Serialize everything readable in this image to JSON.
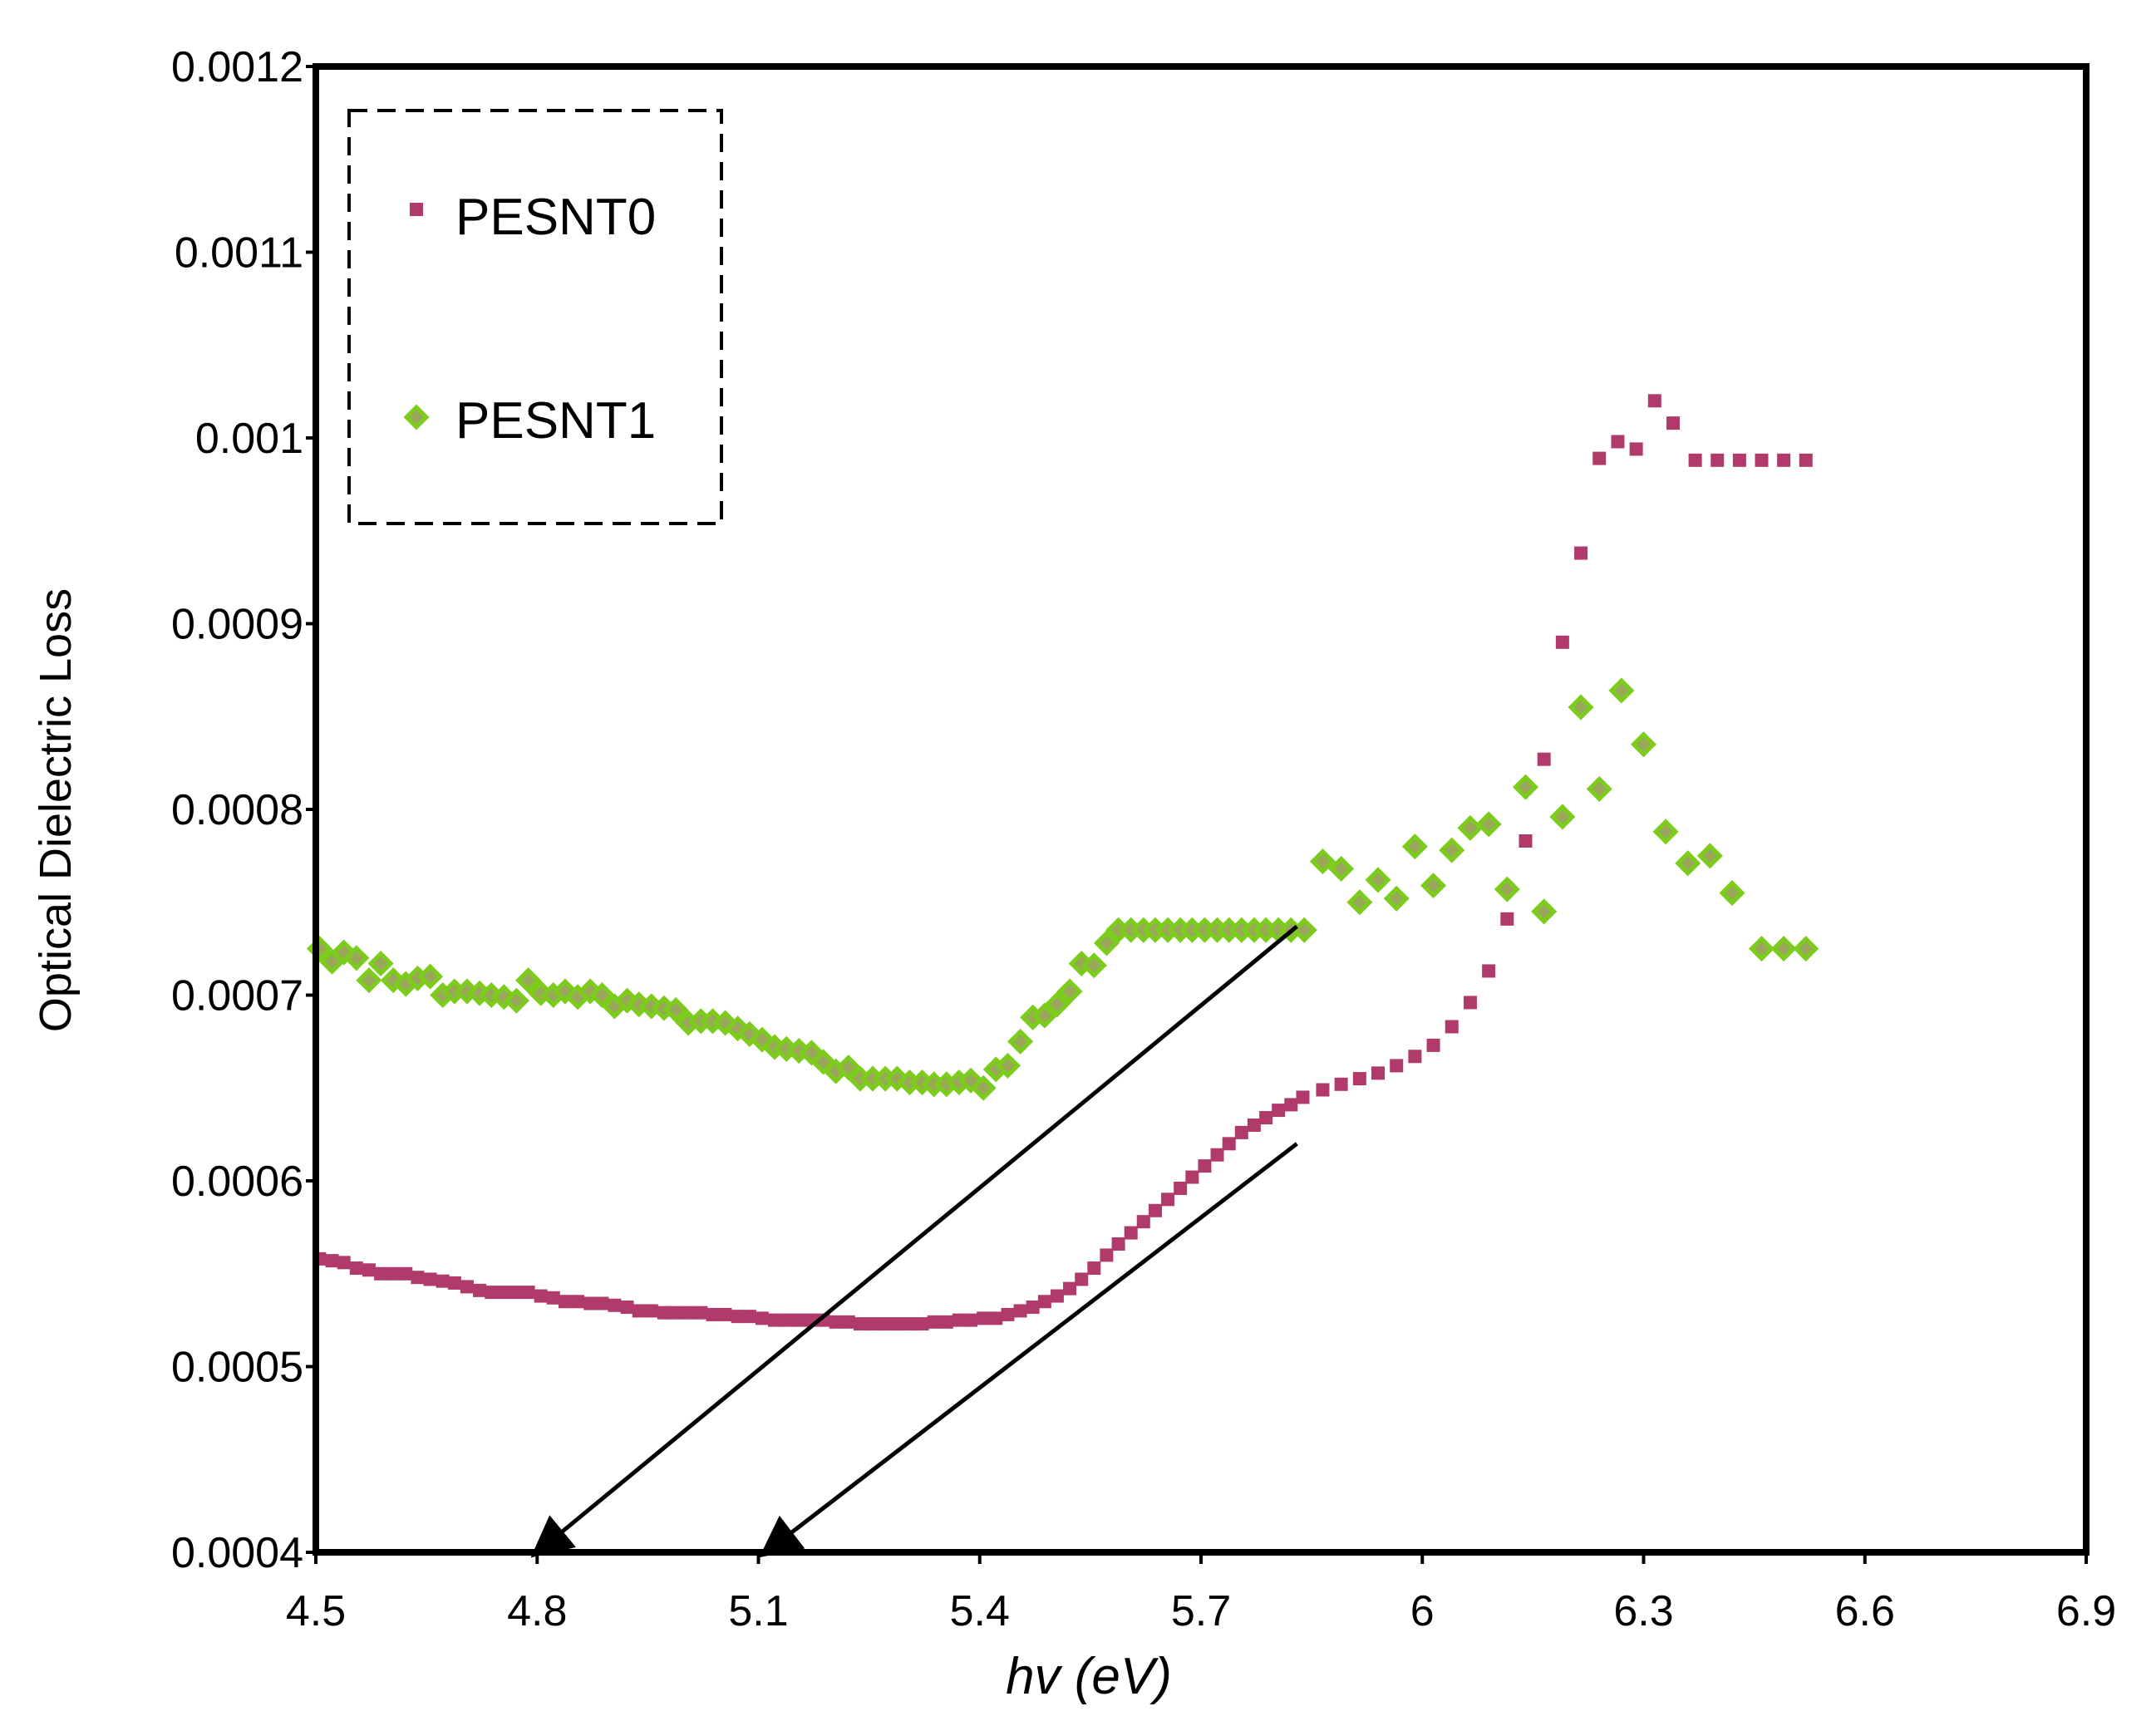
{
  "chart_data": {
    "type": "scatter",
    "title": "",
    "xlabel": "hv (eV)",
    "ylabel": "Optical Dielectric Loss",
    "xlim": [
      4.5,
      6.9
    ],
    "ylim": [
      0.0004,
      0.0012
    ],
    "x_ticks": [
      "4.5",
      "4.8",
      "5.1",
      "5.4",
      "5.7",
      "6",
      "6.3",
      "6.6",
      "6.9"
    ],
    "y_ticks": [
      "0.0004",
      "0.0005",
      "0.0006",
      "0.0007",
      "0.0008",
      "0.0009",
      "0.001",
      "0.0011",
      "0.0012"
    ],
    "grid": false,
    "legend_position": "top-left",
    "colors": {
      "PESNT0": "#b03a6a",
      "PESNT1_fill": "#9aa75a",
      "PESNT1_edge": "#7ccc1c",
      "frame": "#000000"
    },
    "series": [
      {
        "name": "PESNT0",
        "marker": "square",
        "x": [
          4.505,
          4.522,
          4.538,
          4.555,
          4.572,
          4.588,
          4.605,
          4.622,
          4.638,
          4.655,
          4.672,
          4.688,
          4.705,
          4.722,
          4.738,
          4.755,
          4.772,
          4.788,
          4.805,
          4.822,
          4.838,
          4.855,
          4.872,
          4.888,
          4.905,
          4.922,
          4.938,
          4.955,
          4.972,
          4.988,
          5.005,
          5.022,
          5.038,
          5.055,
          5.072,
          5.088,
          5.105,
          5.122,
          5.138,
          5.155,
          5.172,
          5.188,
          5.205,
          5.222,
          5.238,
          5.255,
          5.272,
          5.288,
          5.305,
          5.322,
          5.338,
          5.355,
          5.372,
          5.388,
          5.405,
          5.422,
          5.438,
          5.455,
          5.472,
          5.488,
          5.505,
          5.522,
          5.538,
          5.555,
          5.572,
          5.588,
          5.605,
          5.622,
          5.638,
          5.655,
          5.672,
          5.688,
          5.705,
          5.722,
          5.738,
          5.755,
          5.772,
          5.788,
          5.805,
          5.822,
          5.838,
          5.865,
          5.89,
          5.915,
          5.94,
          5.965,
          5.99,
          6.015,
          6.04,
          6.065,
          6.09,
          6.115,
          6.14,
          6.165,
          6.19,
          6.215,
          6.24,
          6.265,
          6.29,
          6.315,
          6.34,
          6.37,
          6.4,
          6.43,
          6.46,
          6.49,
          6.52
        ],
        "y": [
          0.000558,
          0.000557,
          0.000556,
          0.000553,
          0.000552,
          0.00055,
          0.00055,
          0.00055,
          0.000548,
          0.000547,
          0.000546,
          0.000545,
          0.000543,
          0.000541,
          0.00054,
          0.00054,
          0.00054,
          0.00054,
          0.000538,
          0.000537,
          0.000535,
          0.000535,
          0.000534,
          0.000534,
          0.000533,
          0.000532,
          0.00053,
          0.00053,
          0.000529,
          0.000529,
          0.000529,
          0.000529,
          0.000528,
          0.000528,
          0.000527,
          0.000527,
          0.000526,
          0.000525,
          0.000525,
          0.000525,
          0.000525,
          0.000525,
          0.000524,
          0.000524,
          0.000523,
          0.000523,
          0.000523,
          0.000523,
          0.000523,
          0.000523,
          0.000524,
          0.000524,
          0.000525,
          0.000525,
          0.000526,
          0.000526,
          0.000528,
          0.00053,
          0.000532,
          0.000535,
          0.000538,
          0.000542,
          0.000547,
          0.000553,
          0.00056,
          0.000566,
          0.000572,
          0.000578,
          0.000584,
          0.00059,
          0.000596,
          0.000602,
          0.000608,
          0.000614,
          0.00062,
          0.000626,
          0.00063,
          0.000634,
          0.000638,
          0.000641,
          0.000645,
          0.000649,
          0.000652,
          0.000655,
          0.000658,
          0.000662,
          0.000667,
          0.000673,
          0.000683,
          0.000696,
          0.000713,
          0.000741,
          0.000783,
          0.000827,
          0.00089,
          0.000938,
          0.000989,
          0.000998,
          0.000994,
          0.00102,
          0.001008,
          0.000988,
          0.000988,
          0.000988,
          0.000988,
          0.000988,
          0.000988
        ],
        "y_note": "PESNT0 points"
      },
      {
        "name": "PESNT1",
        "marker": "diamond",
        "x": [
          4.505,
          4.522,
          4.538,
          4.555,
          4.572,
          4.588,
          4.605,
          4.622,
          4.638,
          4.655,
          4.672,
          4.688,
          4.705,
          4.722,
          4.738,
          4.755,
          4.772,
          4.788,
          4.805,
          4.822,
          4.838,
          4.855,
          4.872,
          4.888,
          4.905,
          4.922,
          4.938,
          4.955,
          4.972,
          4.988,
          5.005,
          5.022,
          5.038,
          5.055,
          5.072,
          5.088,
          5.105,
          5.122,
          5.138,
          5.155,
          5.172,
          5.188,
          5.205,
          5.222,
          5.238,
          5.255,
          5.272,
          5.288,
          5.305,
          5.322,
          5.338,
          5.355,
          5.372,
          5.388,
          5.405,
          5.422,
          5.438,
          5.455,
          5.472,
          5.488,
          5.505,
          5.522,
          5.538,
          5.555,
          5.572,
          5.588,
          5.605,
          5.622,
          5.638,
          5.655,
          5.672,
          5.688,
          5.705,
          5.722,
          5.738,
          5.755,
          5.772,
          5.788,
          5.805,
          5.822,
          5.84,
          5.865,
          5.89,
          5.915,
          5.94,
          5.965,
          5.99,
          6.015,
          6.04,
          6.065,
          6.09,
          6.115,
          6.14,
          6.165,
          6.19,
          6.215,
          6.24,
          6.27,
          6.3,
          6.33,
          6.36,
          6.39,
          6.42,
          6.46,
          6.49,
          6.52
        ],
        "y": [
          0.000725,
          0.000718,
          0.000723,
          0.00072,
          0.000708,
          0.000717,
          0.000708,
          0.000706,
          0.000709,
          0.00071,
          0.0007,
          0.000702,
          0.000702,
          0.000701,
          0.0007,
          0.000699,
          0.000697,
          0.000708,
          0.000701,
          0.0007,
          0.000702,
          0.000699,
          0.000702,
          0.0007,
          0.000694,
          0.000697,
          0.000695,
          0.000694,
          0.000693,
          0.000692,
          0.000685,
          0.000686,
          0.000686,
          0.000685,
          0.000682,
          0.000679,
          0.000676,
          0.000672,
          0.000671,
          0.00067,
          0.000669,
          0.000664,
          0.000659,
          0.000661,
          0.000655,
          0.000655,
          0.000655,
          0.000655,
          0.000653,
          0.000653,
          0.000652,
          0.000652,
          0.000653,
          0.000654,
          0.00065,
          0.00066,
          0.000662,
          0.000675,
          0.000688,
          0.000689,
          0.000695,
          0.000702,
          0.000717,
          0.000716,
          0.000728,
          0.000735,
          0.000735,
          0.000735,
          0.000735,
          0.000735,
          0.000735,
          0.000735,
          0.000735,
          0.000735,
          0.000735,
          0.000735,
          0.000735,
          0.000735,
          0.000735,
          0.000735,
          0.000735,
          0.000772,
          0.000768,
          0.00075,
          0.000762,
          0.000752,
          0.00078,
          0.000759,
          0.000778,
          0.00079,
          0.000792,
          0.000757,
          0.000812,
          0.000745,
          0.000796,
          0.000855,
          0.000811,
          0.000864,
          0.000835,
          0.000788,
          0.000771,
          0.000775,
          0.000755,
          0.000725,
          0.000725,
          0.000725
        ],
        "y_note": "PESNT1 points"
      }
    ],
    "annotations": [
      {
        "type": "arrow",
        "from": [
          5.83,
          0.000737
        ],
        "to": [
          4.8,
          0.0004
        ]
      },
      {
        "type": "arrow",
        "from": [
          5.83,
          0.00062
        ],
        "to": [
          5.11,
          0.0004
        ]
      }
    ]
  }
}
